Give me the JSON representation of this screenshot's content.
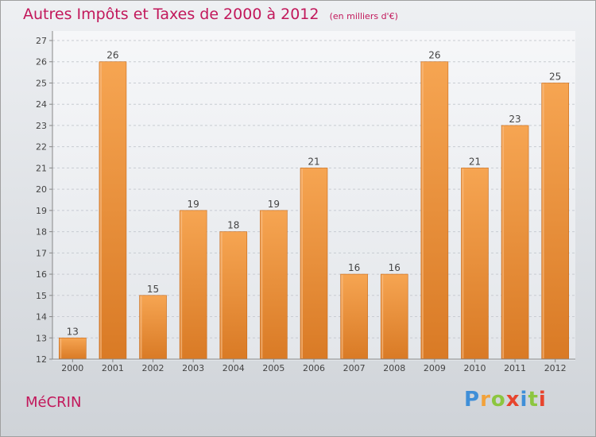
{
  "chart_data": {
    "type": "bar",
    "title": "Autres Impôts et Taxes de 2000 à 2012",
    "subtitle": "(en milliers d'€)",
    "categories": [
      "2000",
      "2001",
      "2002",
      "2003",
      "2004",
      "2005",
      "2006",
      "2007",
      "2008",
      "2009",
      "2010",
      "2011",
      "2012"
    ],
    "values": [
      13,
      26,
      15,
      19,
      18,
      19,
      21,
      16,
      16,
      26,
      21,
      23,
      25
    ],
    "ylim": [
      12,
      27
    ],
    "yticks": [
      12,
      13,
      14,
      15,
      16,
      17,
      18,
      19,
      20,
      21,
      22,
      23,
      24,
      25,
      26,
      27
    ],
    "grid": true,
    "bar_color": "#e8892f"
  },
  "footer": {
    "town": "MéCRIN",
    "logo": "Proxiti"
  }
}
